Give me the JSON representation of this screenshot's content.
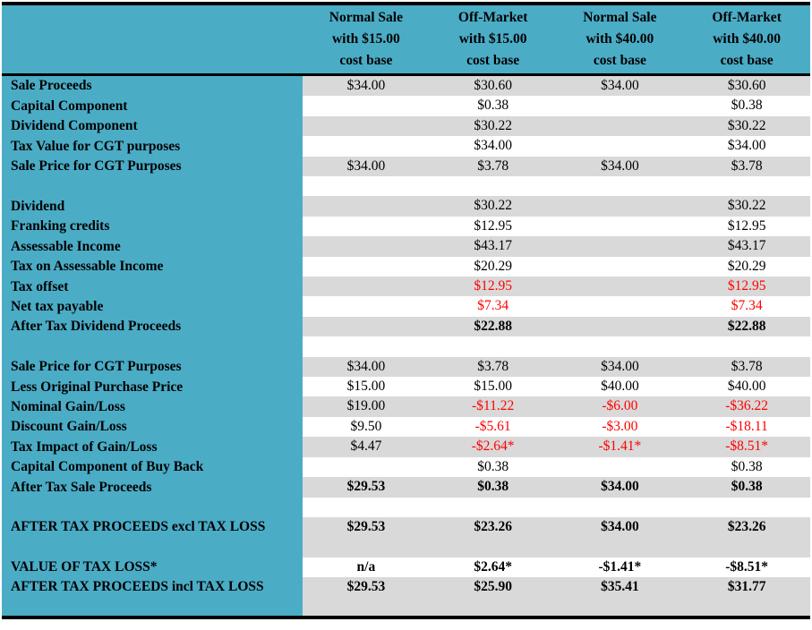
{
  "colors": {
    "accent_teal": "#4BACC6",
    "stripe_gray": "#D9D9D9",
    "negative_red": "#FF0000",
    "border_black": "#000000"
  },
  "table": {
    "columns": [
      "Normal Sale\nwith $15.00\ncost base",
      "Off-Market\nwith $15.00\ncost base",
      "Normal Sale\nwith $40.00\ncost base",
      "Off-Market\nwith $40.00\ncost base"
    ],
    "rows": [
      {
        "label": "Sale Proceeds",
        "values": [
          "$34.00",
          "$30.60",
          "$34.00",
          "$30.60"
        ],
        "shade": "gray"
      },
      {
        "label": "Capital Component",
        "values": [
          "",
          "$0.38",
          "",
          "$0.38"
        ],
        "shade": "white"
      },
      {
        "label": "Dividend Component",
        "values": [
          "",
          "$30.22",
          "",
          "$30.22"
        ],
        "shade": "gray"
      },
      {
        "label": "Tax Value for CGT purposes",
        "values": [
          "",
          "$34.00",
          "",
          "$34.00"
        ],
        "shade": "white"
      },
      {
        "label": "Sale Price for CGT Purposes",
        "values": [
          "$34.00",
          "$3.78",
          "$34.00",
          "$3.78"
        ],
        "shade": "gray"
      },
      {
        "spacer": true
      },
      {
        "label": "Dividend",
        "values": [
          "",
          "$30.22",
          "",
          "$30.22"
        ],
        "shade": "gray"
      },
      {
        "label": "Franking credits",
        "values": [
          "",
          "$12.95",
          "",
          "$12.95"
        ],
        "shade": "white"
      },
      {
        "label": "Assessable Income",
        "values": [
          "",
          "$43.17",
          "",
          "$43.17"
        ],
        "shade": "gray"
      },
      {
        "label": "Tax on Assessable Income",
        "values": [
          "",
          "$20.29",
          "",
          "$20.29"
        ],
        "shade": "white"
      },
      {
        "label": "Tax offset",
        "values": [
          "",
          "$12.95",
          "",
          "$12.95"
        ],
        "shade": "gray",
        "red": [
          1,
          3
        ]
      },
      {
        "label": "Net tax payable",
        "values": [
          "",
          "$7.34",
          "",
          "$7.34"
        ],
        "shade": "white",
        "red": [
          1,
          3
        ]
      },
      {
        "label": "After Tax Dividend Proceeds",
        "values": [
          "",
          "$22.88",
          "",
          "$22.88"
        ],
        "shade": "gray",
        "bold": true
      },
      {
        "spacer": true
      },
      {
        "label": "Sale Price for CGT Purposes",
        "values": [
          "$34.00",
          "$3.78",
          "$34.00",
          "$3.78"
        ],
        "shade": "gray"
      },
      {
        "label": "Less Original Purchase Price",
        "values": [
          "$15.00",
          "$15.00",
          "$40.00",
          "$40.00"
        ],
        "shade": "white"
      },
      {
        "label": "Nominal Gain/Loss",
        "values": [
          "$19.00",
          "-$11.22",
          "-$6.00",
          "-$36.22"
        ],
        "shade": "gray",
        "red": [
          1,
          2,
          3
        ]
      },
      {
        "label": "Discount Gain/Loss",
        "values": [
          "$9.50",
          "-$5.61",
          "-$3.00",
          "-$18.11"
        ],
        "shade": "white",
        "red": [
          1,
          2,
          3
        ]
      },
      {
        "label": "Tax Impact of Gain/Loss",
        "values": [
          "$4.47",
          "-$2.64*",
          "-$1.41*",
          "-$8.51*"
        ],
        "shade": "gray",
        "red": [
          1,
          2,
          3
        ]
      },
      {
        "label": "Capital Component of Buy Back",
        "values": [
          "",
          "$0.38",
          "",
          "$0.38"
        ],
        "shade": "white"
      },
      {
        "label": "After Tax Sale Proceeds",
        "values": [
          "$29.53",
          "$0.38",
          "$34.00",
          "$0.38"
        ],
        "shade": "gray",
        "bold": true
      },
      {
        "spacer": true
      },
      {
        "label": "AFTER TAX PROCEEDS excl TAX LOSS",
        "values": [
          "$29.53",
          "$23.26",
          "$34.00",
          "$23.26"
        ],
        "shade": "gray",
        "bold": true,
        "tall": true
      },
      {
        "label": "VALUE OF TAX LOSS*",
        "values": [
          "n/a",
          "$2.64*",
          "-$1.41*",
          "-$8.51*"
        ],
        "shade": "white",
        "bold": true
      },
      {
        "label": "AFTER TAX PROCEEDS incl TAX LOSS",
        "values": [
          "$29.53",
          "$25.90",
          "$35.41",
          "$31.77"
        ],
        "shade": "gray",
        "bold": true,
        "tall": true
      }
    ]
  }
}
